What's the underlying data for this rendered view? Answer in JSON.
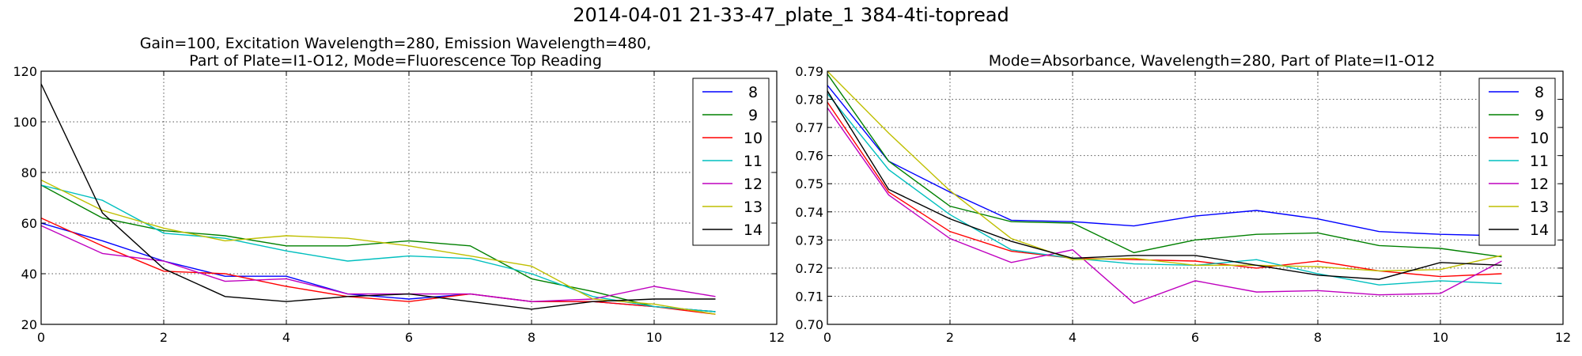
{
  "figure": {
    "suptitle": "2014-04-01 21-33-47_plate_1 384-4ti-topread"
  },
  "legend_labels": [
    "8",
    "9",
    "10",
    "11",
    "12",
    "13",
    "14"
  ],
  "colors": {
    "8": "#0000ff",
    "9": "#008000",
    "10": "#ff0000",
    "11": "#00bfbf",
    "12": "#bf00bf",
    "13": "#bfbf00",
    "14": "#000000",
    "grid": "#555555",
    "axis": "#000000",
    "background": "#ffffff"
  },
  "chart_data": [
    {
      "type": "line",
      "title": "Gain=100, Excitation Wavelength=280, Emission Wavelength=480,",
      "title_line2": "Part of Plate=I1-O12, Mode=Fluorescence Top Reading",
      "xlabel": "",
      "ylabel": "",
      "xlim": [
        0,
        12
      ],
      "ylim": [
        20,
        120
      ],
      "xticks": [
        "0",
        "2",
        "4",
        "6",
        "8",
        "10",
        "12"
      ],
      "yticks": [
        "20",
        "40",
        "60",
        "80",
        "100",
        "120"
      ],
      "grid": true,
      "legend_position": "top-right",
      "x": [
        0,
        1,
        2,
        3,
        4,
        5,
        6,
        7,
        8,
        9,
        10,
        11
      ],
      "series": [
        {
          "name": "8",
          "values": [
            60,
            53,
            45,
            39,
            39,
            32,
            30,
            32,
            29,
            29,
            27,
            25
          ]
        },
        {
          "name": "9",
          "values": [
            75,
            62,
            57,
            55,
            51,
            51,
            53,
            51,
            38,
            33,
            27,
            25
          ]
        },
        {
          "name": "10",
          "values": [
            62,
            51,
            41,
            40,
            35,
            31,
            29,
            32,
            29,
            29,
            27,
            24
          ]
        },
        {
          "name": "11",
          "values": [
            75,
            69,
            56,
            54,
            49,
            45,
            47,
            46,
            40,
            31,
            27,
            25
          ]
        },
        {
          "name": "12",
          "values": [
            59,
            48,
            45,
            37,
            38,
            32,
            32,
            32,
            29,
            30,
            35,
            31
          ]
        },
        {
          "name": "13",
          "values": [
            77,
            65,
            58,
            53,
            55,
            54,
            51,
            47,
            43,
            30,
            28,
            24
          ]
        },
        {
          "name": "14",
          "values": [
            115,
            64,
            42,
            31,
            29,
            31,
            32,
            29,
            26,
            29,
            30,
            30
          ]
        }
      ]
    },
    {
      "type": "line",
      "title": "Mode=Absorbance, Wavelength=280, Part of Plate=I1-O12",
      "xlabel": "",
      "ylabel": "",
      "xlim": [
        0,
        12
      ],
      "ylim": [
        0.7,
        0.79
      ],
      "xticks": [
        "0",
        "2",
        "4",
        "6",
        "8",
        "10",
        "12"
      ],
      "yticks": [
        "0.70",
        "0.71",
        "0.72",
        "0.73",
        "0.74",
        "0.75",
        "0.76",
        "0.77",
        "0.78",
        "0.79"
      ],
      "grid": true,
      "legend_position": "top-right",
      "x": [
        0,
        1,
        2,
        3,
        4,
        5,
        6,
        7,
        8,
        9,
        10,
        11
      ],
      "series": [
        {
          "name": "8",
          "values": [
            0.785,
            0.758,
            0.747,
            0.737,
            0.7365,
            0.735,
            0.7385,
            0.7405,
            0.7375,
            0.733,
            0.732,
            0.7315
          ]
        },
        {
          "name": "9",
          "values": [
            0.789,
            0.758,
            0.742,
            0.7365,
            0.736,
            0.7255,
            0.73,
            0.732,
            0.7325,
            0.728,
            0.727,
            0.724
          ]
        },
        {
          "name": "10",
          "values": [
            0.779,
            0.747,
            0.733,
            0.726,
            0.7235,
            0.723,
            0.7225,
            0.72,
            0.7225,
            0.719,
            0.717,
            0.718
          ]
        },
        {
          "name": "11",
          "values": [
            0.782,
            0.755,
            0.739,
            0.7265,
            0.7235,
            0.7215,
            0.721,
            0.723,
            0.718,
            0.714,
            0.7155,
            0.7145
          ]
        },
        {
          "name": "12",
          "values": [
            0.777,
            0.746,
            0.7305,
            0.722,
            0.7265,
            0.7075,
            0.7155,
            0.7115,
            0.712,
            0.7105,
            0.711,
            0.7225
          ]
        },
        {
          "name": "13",
          "values": [
            0.79,
            0.768,
            0.7475,
            0.7305,
            0.723,
            0.7235,
            0.721,
            0.721,
            0.7205,
            0.719,
            0.7195,
            0.7245
          ]
        },
        {
          "name": "14",
          "values": [
            0.783,
            0.748,
            0.7375,
            0.7295,
            0.7235,
            0.7245,
            0.7245,
            0.721,
            0.7175,
            0.716,
            0.722,
            0.721
          ]
        }
      ]
    }
  ]
}
